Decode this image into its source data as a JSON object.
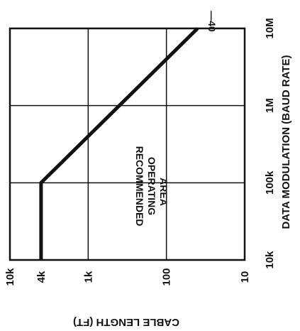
{
  "chart_data": {
    "type": "line",
    "xlabel": "DATA MODULATION (BAUD RATE)",
    "ylabel": "CABLE LENGTH (FT)",
    "x_scale": "log",
    "y_scale": "log",
    "xlim": [
      10000,
      10000000
    ],
    "ylim": [
      10,
      10000
    ],
    "x_ticks": [
      "10k",
      "100k",
      "1M",
      "10M"
    ],
    "y_ticks": [
      "10k",
      "4k",
      "1k",
      "100",
      "10"
    ],
    "grid": true,
    "orientation": "rotated 90 degrees clockwise",
    "series": [
      {
        "x": [
          10000,
          100000,
          1000000,
          10000000
        ],
        "y": [
          4000,
          4000,
          400,
          40
        ]
      }
    ],
    "annotations": [
      {
        "text": "RECOMMENDED",
        "line": 0
      },
      {
        "text": "OPERATING",
        "line": 1
      },
      {
        "text": "AREA",
        "line": 2
      },
      {
        "text": "—40",
        "line": 3
      }
    ]
  }
}
